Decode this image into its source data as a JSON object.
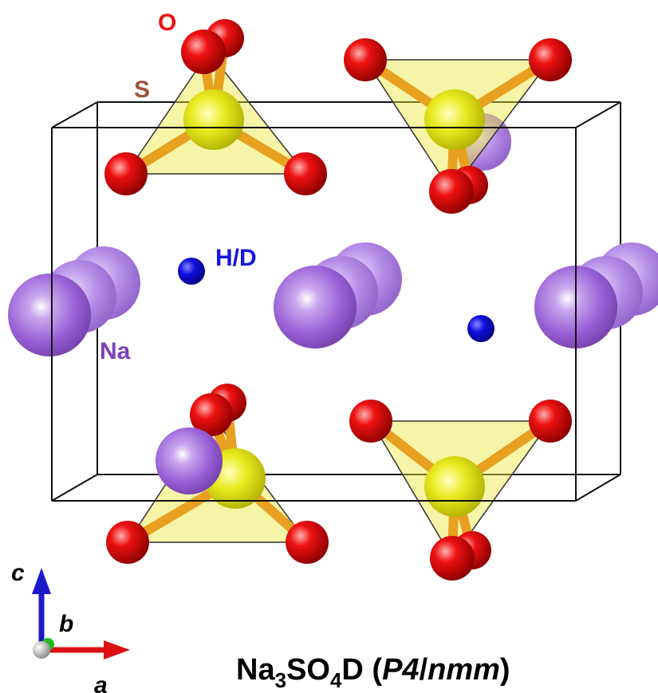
{
  "labels": {
    "oxygen": "O",
    "sulfur": "S",
    "hydrogen": "H/D",
    "sodium": "Na"
  },
  "axes": {
    "c": "c",
    "b": "b",
    "a": "a"
  },
  "formula": [
    "Na",
    "3",
    "SO",
    "4",
    "D (",
    "P4",
    "/",
    "nmm",
    ")"
  ]
}
